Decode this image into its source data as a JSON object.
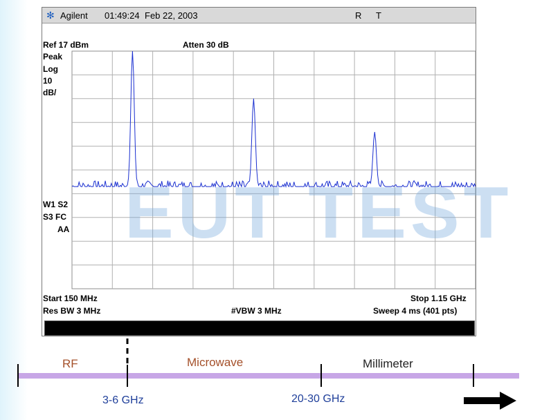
{
  "titlebar": {
    "brand": "Agilent",
    "time": "01:49:24",
    "date": "Feb 22, 2003",
    "r": "R",
    "t": "T"
  },
  "chart_data": {
    "type": "line",
    "title": "",
    "ref_level": "Ref 17 dBm",
    "atten": "Atten 30 dB",
    "mode_labels": [
      "Peak",
      "Log",
      "10",
      "dB/"
    ],
    "trace_labels": [
      "W1  S2",
      "S3  FC",
      "AA"
    ],
    "start": "Start 150 MHz",
    "stop": "Stop 1.15 GHz",
    "rbw": "Res BW 3 MHz",
    "vbw": "#VBW 3 MHz",
    "sweep": "Sweep 4 ms (401 pts)",
    "x_range_mhz": [
      150,
      1150
    ],
    "y_range_dbm": [
      -83,
      17
    ],
    "grid": true,
    "noise_floor_dbm": -40,
    "series": [
      {
        "color": "#1a2fd0",
        "peaks": [
          {
            "freq_mhz": 300,
            "level_dbm": 17
          },
          {
            "freq_mhz": 600,
            "level_dbm": -3
          },
          {
            "freq_mhz": 900,
            "level_dbm": -17
          }
        ]
      }
    ]
  },
  "watermark": "EUT TEST",
  "bands": {
    "rf": "RF",
    "microwave": "Microwave",
    "millimeter": "Millimeter",
    "f1": "3-6 GHz",
    "f2": "20-30 GHz"
  },
  "colors": {
    "band_line": "#c7a6e6",
    "rf_text": "#a4502a",
    "mm_text": "#222222"
  }
}
